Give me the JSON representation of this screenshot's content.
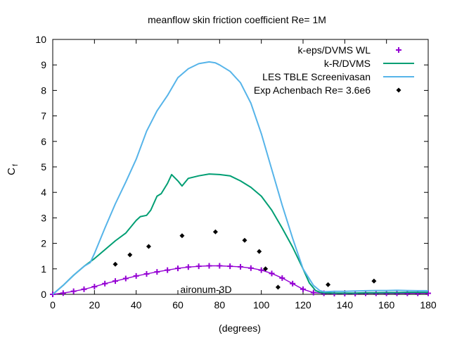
{
  "chart_data": {
    "type": "line",
    "title": "meanflow skin friction coefficient Re= 1M",
    "xlabel": "(degrees)",
    "ylabel_main": "C",
    "ylabel_sub": "f",
    "annotation": "aironum-3D",
    "xlim": [
      0,
      180
    ],
    "ylim": [
      0,
      10
    ],
    "xticks": [
      "0",
      "20",
      "40",
      "60",
      "80",
      "100",
      "120",
      "140",
      "160",
      "180"
    ],
    "yticks": [
      "0",
      "1",
      "2",
      "3",
      "4",
      "5",
      "6",
      "7",
      "8",
      "9",
      "10"
    ],
    "grid": false,
    "legend_position": "top-right",
    "series": [
      {
        "name": "k-eps/DVMS WL",
        "style": "plus",
        "color": "#9400d3",
        "x": [
          0,
          5,
          10,
          15,
          20,
          25,
          30,
          35,
          40,
          45,
          50,
          55,
          60,
          65,
          70,
          75,
          80,
          85,
          90,
          95,
          100,
          105,
          110,
          115,
          120,
          125,
          130,
          135,
          140,
          145,
          150,
          155,
          160,
          165,
          170,
          175,
          180
        ],
        "y": [
          0.0,
          0.05,
          0.12,
          0.2,
          0.3,
          0.42,
          0.52,
          0.62,
          0.72,
          0.8,
          0.88,
          0.95,
          1.02,
          1.07,
          1.1,
          1.12,
          1.12,
          1.1,
          1.08,
          1.03,
          0.95,
          0.82,
          0.64,
          0.42,
          0.2,
          0.07,
          0.04,
          0.03,
          0.03,
          0.03,
          0.04,
          0.04,
          0.04,
          0.04,
          0.04,
          0.04,
          0.04
        ]
      },
      {
        "name": "k-R/DVMS",
        "style": "line",
        "color": "#009e73",
        "x": [
          0,
          5,
          10,
          15,
          20,
          25,
          30,
          35,
          40,
          42,
          45,
          47,
          50,
          52,
          55,
          57,
          60,
          62,
          65,
          70,
          75,
          80,
          85,
          90,
          95,
          100,
          105,
          110,
          115,
          120,
          123,
          126,
          128,
          130,
          135,
          140,
          145,
          150,
          155,
          160,
          165,
          170,
          175,
          180
        ],
        "y": [
          0.0,
          0.35,
          0.75,
          1.1,
          1.4,
          1.75,
          2.1,
          2.4,
          2.9,
          3.05,
          3.1,
          3.3,
          3.85,
          3.95,
          4.35,
          4.7,
          4.45,
          4.25,
          4.55,
          4.65,
          4.72,
          4.7,
          4.65,
          4.45,
          4.2,
          3.85,
          3.3,
          2.6,
          1.85,
          1.0,
          0.45,
          0.15,
          0.08,
          0.06,
          0.05,
          0.05,
          0.05,
          0.06,
          0.06,
          0.07,
          0.07,
          0.08,
          0.08,
          0.08
        ]
      },
      {
        "name": "LES TBLE Screenivasan",
        "style": "line",
        "color": "#56b4e9",
        "x": [
          0,
          5,
          10,
          15,
          18,
          20,
          25,
          30,
          35,
          40,
          45,
          50,
          55,
          60,
          65,
          70,
          75,
          78,
          80,
          85,
          90,
          95,
          100,
          105,
          110,
          115,
          120,
          125,
          128,
          130,
          135,
          140,
          145,
          150,
          155,
          160,
          165,
          170,
          175,
          180
        ],
        "y": [
          0.0,
          0.35,
          0.75,
          1.1,
          1.25,
          1.6,
          2.6,
          3.55,
          4.4,
          5.3,
          6.4,
          7.2,
          7.8,
          8.5,
          8.85,
          9.05,
          9.12,
          9.08,
          9.0,
          8.75,
          8.3,
          7.5,
          6.3,
          4.9,
          3.5,
          2.2,
          1.0,
          0.35,
          0.15,
          0.1,
          0.12,
          0.12,
          0.13,
          0.14,
          0.15,
          0.15,
          0.16,
          0.15,
          0.14,
          0.14
        ]
      },
      {
        "name": "Exp Achenbach Re= 3.6e6",
        "style": "diamond",
        "color": "#000000",
        "x": [
          30,
          37,
          46,
          62,
          78,
          92,
          99,
          102,
          108,
          132,
          154
        ],
        "y": [
          1.18,
          1.55,
          1.88,
          2.3,
          2.45,
          2.12,
          1.68,
          1.0,
          0.28,
          0.38,
          0.52
        ]
      }
    ]
  }
}
